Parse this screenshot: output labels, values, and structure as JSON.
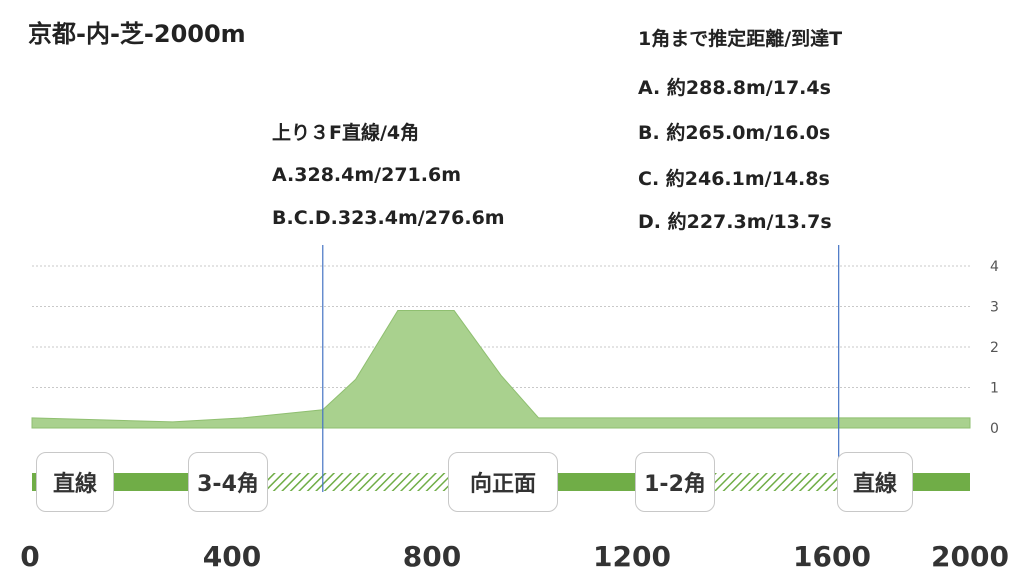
{
  "chart_data": {
    "type": "area",
    "title": "京都-内-芝-2000m",
    "x": [
      0,
      150,
      300,
      450,
      620,
      690,
      780,
      900,
      1000,
      1080,
      1300,
      1600,
      2000
    ],
    "values": [
      0.25,
      0.2,
      0.15,
      0.25,
      0.45,
      1.2,
      2.9,
      2.9,
      1.3,
      0.25,
      0.25,
      0.25,
      0.25
    ],
    "xlim": [
      0,
      2000
    ],
    "ylim": [
      0,
      4
    ],
    "yticks": [
      "0",
      "1",
      "2",
      "3",
      "4"
    ],
    "xticks": [
      "0",
      "400",
      "800",
      "1200",
      "1600",
      "2000"
    ],
    "grid": true,
    "area_color": "#a9d18e",
    "marker_lines_x": [
      620,
      1720
    ],
    "marker_color": "#4472c4"
  },
  "annotations": {
    "straight_title": "上り３F直線/4角",
    "straight_lines": [
      "A.328.4m/271.6m",
      "B.C.D.323.4m/276.6m"
    ],
    "corner_title": "1角まで推定距離/到達T",
    "corner_lines": [
      "A. 約288.8m/17.4s",
      "B. 約265.0m/16.0s",
      "C. 約246.1m/14.8s",
      "D. 約227.3m/13.7s"
    ]
  },
  "track": {
    "segments": [
      {
        "label": "直線",
        "start": 0,
        "end": 340,
        "style": "solid"
      },
      {
        "label": "3-4角",
        "start": 340,
        "end": 910,
        "style": "hatched"
      },
      {
        "label": "向正面",
        "start": 910,
        "end": 1300,
        "style": "solid"
      },
      {
        "label": "1-2角",
        "start": 1300,
        "end": 1720,
        "style": "hatched"
      },
      {
        "label": "直線",
        "start": 1720,
        "end": 2000,
        "style": "solid"
      }
    ],
    "color": "#70ad47"
  }
}
